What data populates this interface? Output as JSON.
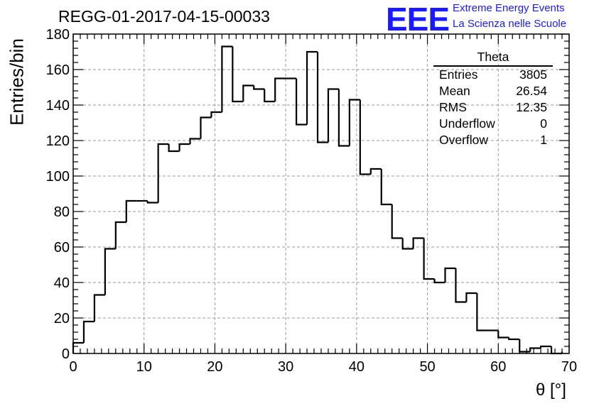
{
  "title": "REGG-01-2017-04-15-00033",
  "logo": {
    "mark": "EEE",
    "line1": "Extreme Energy Events",
    "line2": "La Scienza nelle Scuole",
    "color": "#1a1aff"
  },
  "stats": {
    "name": "Theta",
    "rows": [
      {
        "label": "Entries",
        "value": "3805"
      },
      {
        "label": "Mean",
        "value": "26.54"
      },
      {
        "label": "RMS",
        "value": "12.35"
      },
      {
        "label": "Underflow",
        "value": "0"
      },
      {
        "label": "Overflow",
        "value": "1"
      }
    ]
  },
  "chart_data": {
    "type": "bar",
    "title": "REGG-01-2017-04-15-00033",
    "xlabel": "θ [°]",
    "ylabel": "Entries/bin",
    "xlim": [
      0,
      70
    ],
    "ylim": [
      0,
      180
    ],
    "x_ticks": [
      0,
      10,
      20,
      30,
      40,
      50,
      60,
      70
    ],
    "y_ticks": [
      0,
      20,
      40,
      60,
      80,
      100,
      120,
      140,
      160,
      180
    ],
    "grid": true,
    "bin_edges": [
      0,
      1.5,
      3,
      4.5,
      6,
      7.5,
      9,
      10.5,
      12,
      13.5,
      15,
      16.5,
      18,
      19.5,
      21,
      22.5,
      24,
      25.5,
      27,
      28.5,
      30,
      31.5,
      33,
      34.5,
      36,
      37.5,
      39,
      40.5,
      42,
      43.5,
      45,
      46.5,
      48,
      49.5,
      51,
      52.5,
      54,
      55.5,
      57,
      58.5,
      60,
      61.5,
      63,
      64.5,
      66,
      67.5,
      69
    ],
    "values": [
      6,
      18,
      33,
      59,
      74,
      86,
      86,
      85,
      118,
      114,
      118,
      121,
      133,
      136,
      173,
      142,
      151,
      149,
      142,
      155,
      155,
      129,
      170,
      119,
      149,
      117,
      143,
      101,
      104,
      84,
      65,
      59,
      65,
      42,
      40,
      48,
      29,
      34,
      13,
      13,
      9,
      8,
      1,
      3,
      4,
      0,
      1
    ],
    "line_color": "#000000"
  }
}
